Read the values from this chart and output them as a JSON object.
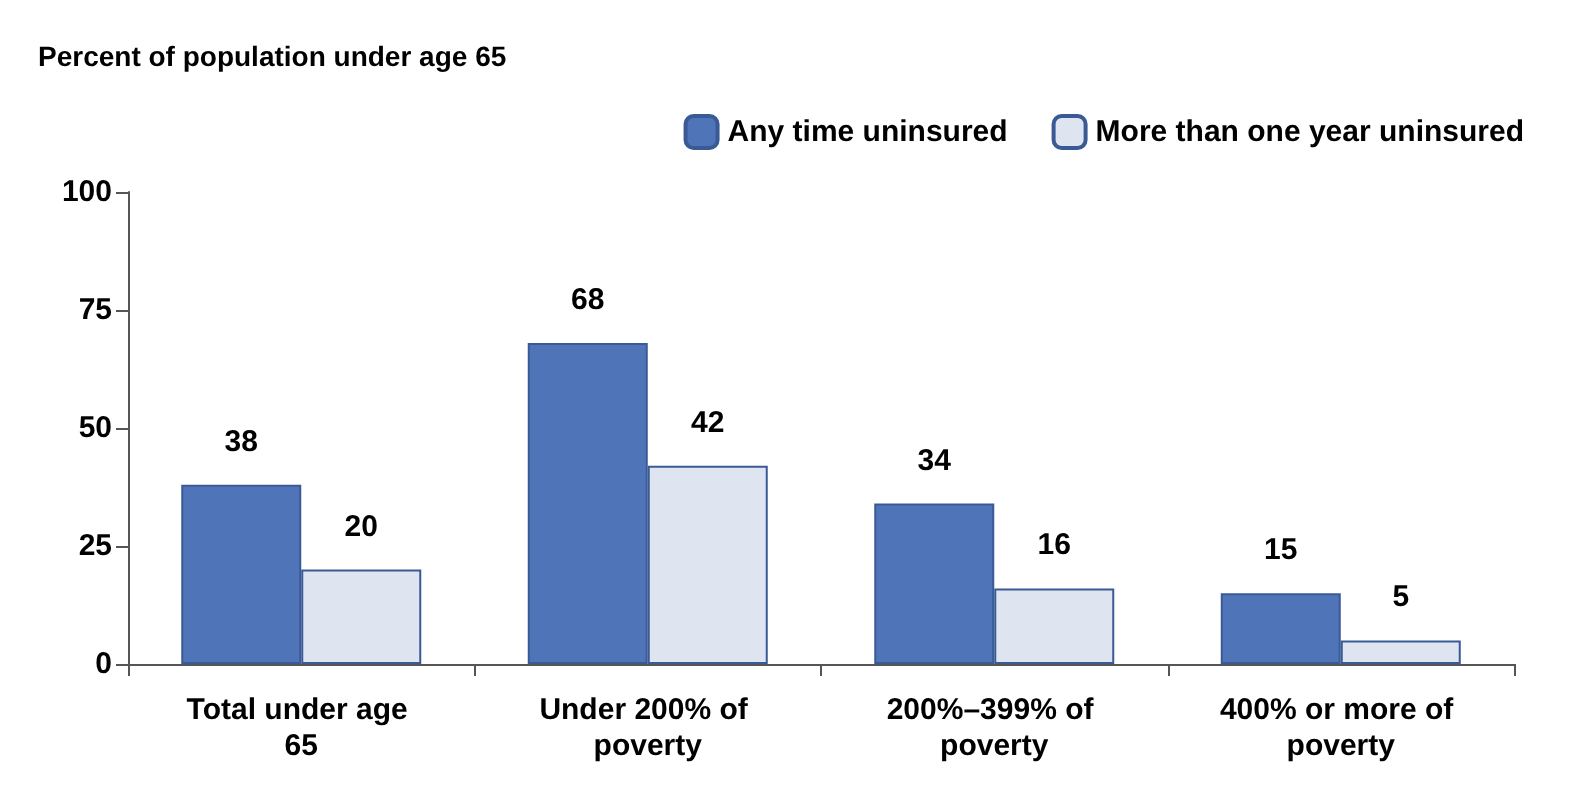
{
  "chart_data": {
    "type": "bar",
    "title": "Percent of population under age 65",
    "categories": [
      "Total under age 65",
      "Under 200% of poverty",
      "200%–399% of poverty",
      "400% or more of poverty"
    ],
    "series": [
      {
        "name": "Any time uninsured",
        "color": "#5074b8",
        "values": [
          38,
          68,
          34,
          15
        ]
      },
      {
        "name": "More than one year uninsured",
        "color": "#dfe4f1",
        "values": [
          20,
          42,
          16,
          5
        ]
      }
    ],
    "ylim": [
      0,
      100
    ],
    "yticks": [
      0,
      25,
      50,
      75,
      100
    ],
    "grid": false,
    "legend": "top right",
    "data_labels": true
  }
}
